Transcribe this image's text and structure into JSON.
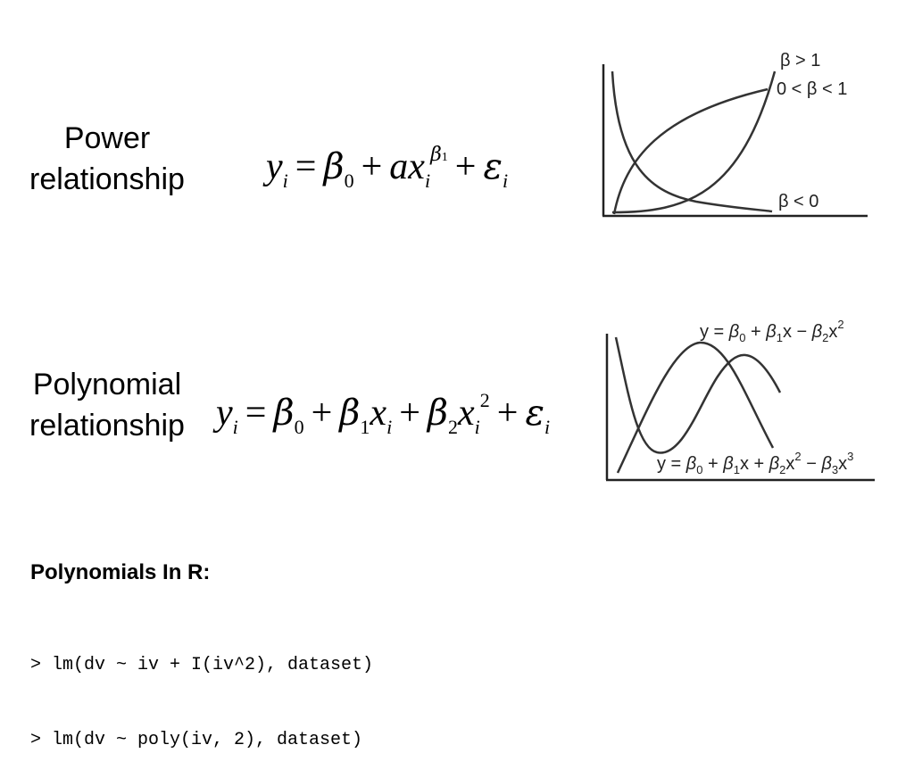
{
  "power": {
    "label_line1": "Power",
    "label_line2": "relationship",
    "eq": {
      "y": "y",
      "y_sub": "i",
      "eq_sign": "=",
      "beta": "β",
      "beta_sub": "0",
      "plus1": "+",
      "a": "a",
      "x": "x",
      "x_sub": "i",
      "exp_beta": "β",
      "exp_sub": "1",
      "plus2": "+",
      "eps": "ε",
      "eps_sub": "i"
    },
    "plot_labels": {
      "gt1": "β > 1",
      "between": "0 < β < 1",
      "lt0": "β < 0"
    }
  },
  "polynomial": {
    "label_line1": "Polynomial",
    "label_line2": "relationship",
    "eq": {
      "y": "y",
      "y_sub": "i",
      "eq_sign": "=",
      "b0": "β",
      "b0_sub": "0",
      "plus1": "+",
      "b1": "β",
      "b1_sub": "1",
      "x1": "x",
      "x1_sub": "i",
      "plus2": "+",
      "b2": "β",
      "b2_sub": "2",
      "x2": "x",
      "x2_sub": "i",
      "x2_sup": "2",
      "plus3": "+",
      "eps": "ε",
      "eps_sub": "i"
    },
    "plot_labels": {
      "quad": "y = β0 + β1x − β2x2",
      "cubic": "y = β0 + β1x + β2x2 − β3x3"
    }
  },
  "r_section": {
    "heading": "Polynomials In R:",
    "code": [
      "> lm(dv ~ iv + I(iv^2), dataset)",
      "> lm(dv ~ poly(iv, 2), dataset)"
    ]
  }
}
